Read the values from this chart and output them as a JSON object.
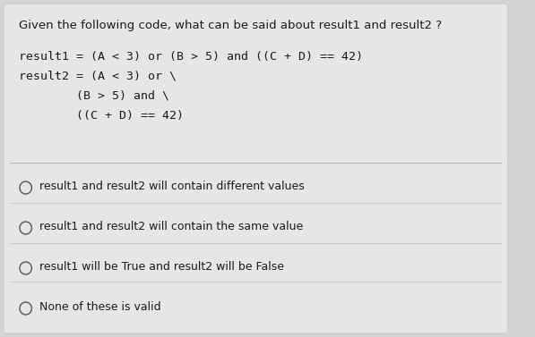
{
  "bg_color": "#d4d4d4",
  "card_color": "#e6e6e6",
  "question": "Given the following code, what can be said about result1 and result2 ?",
  "code_lines": [
    "result1 = (A < 3) or (B > 5) and ((C + D) == 42)",
    "result2 = (A < 3) or \\",
    "        (B > 5) and \\",
    "        ((C + D) == 42)"
  ],
  "options": [
    "result1 and result2 will contain different values",
    "result1 and result2 will contain the same value",
    "result1 will be True and result2 will be False",
    "None of these is valid"
  ],
  "text_color": "#1a1a1a",
  "divider_color": "#bbbbbb",
  "circle_color": "#555555",
  "question_fontsize": 9.5,
  "code_fontsize": 9.5,
  "option_fontsize": 9.0
}
